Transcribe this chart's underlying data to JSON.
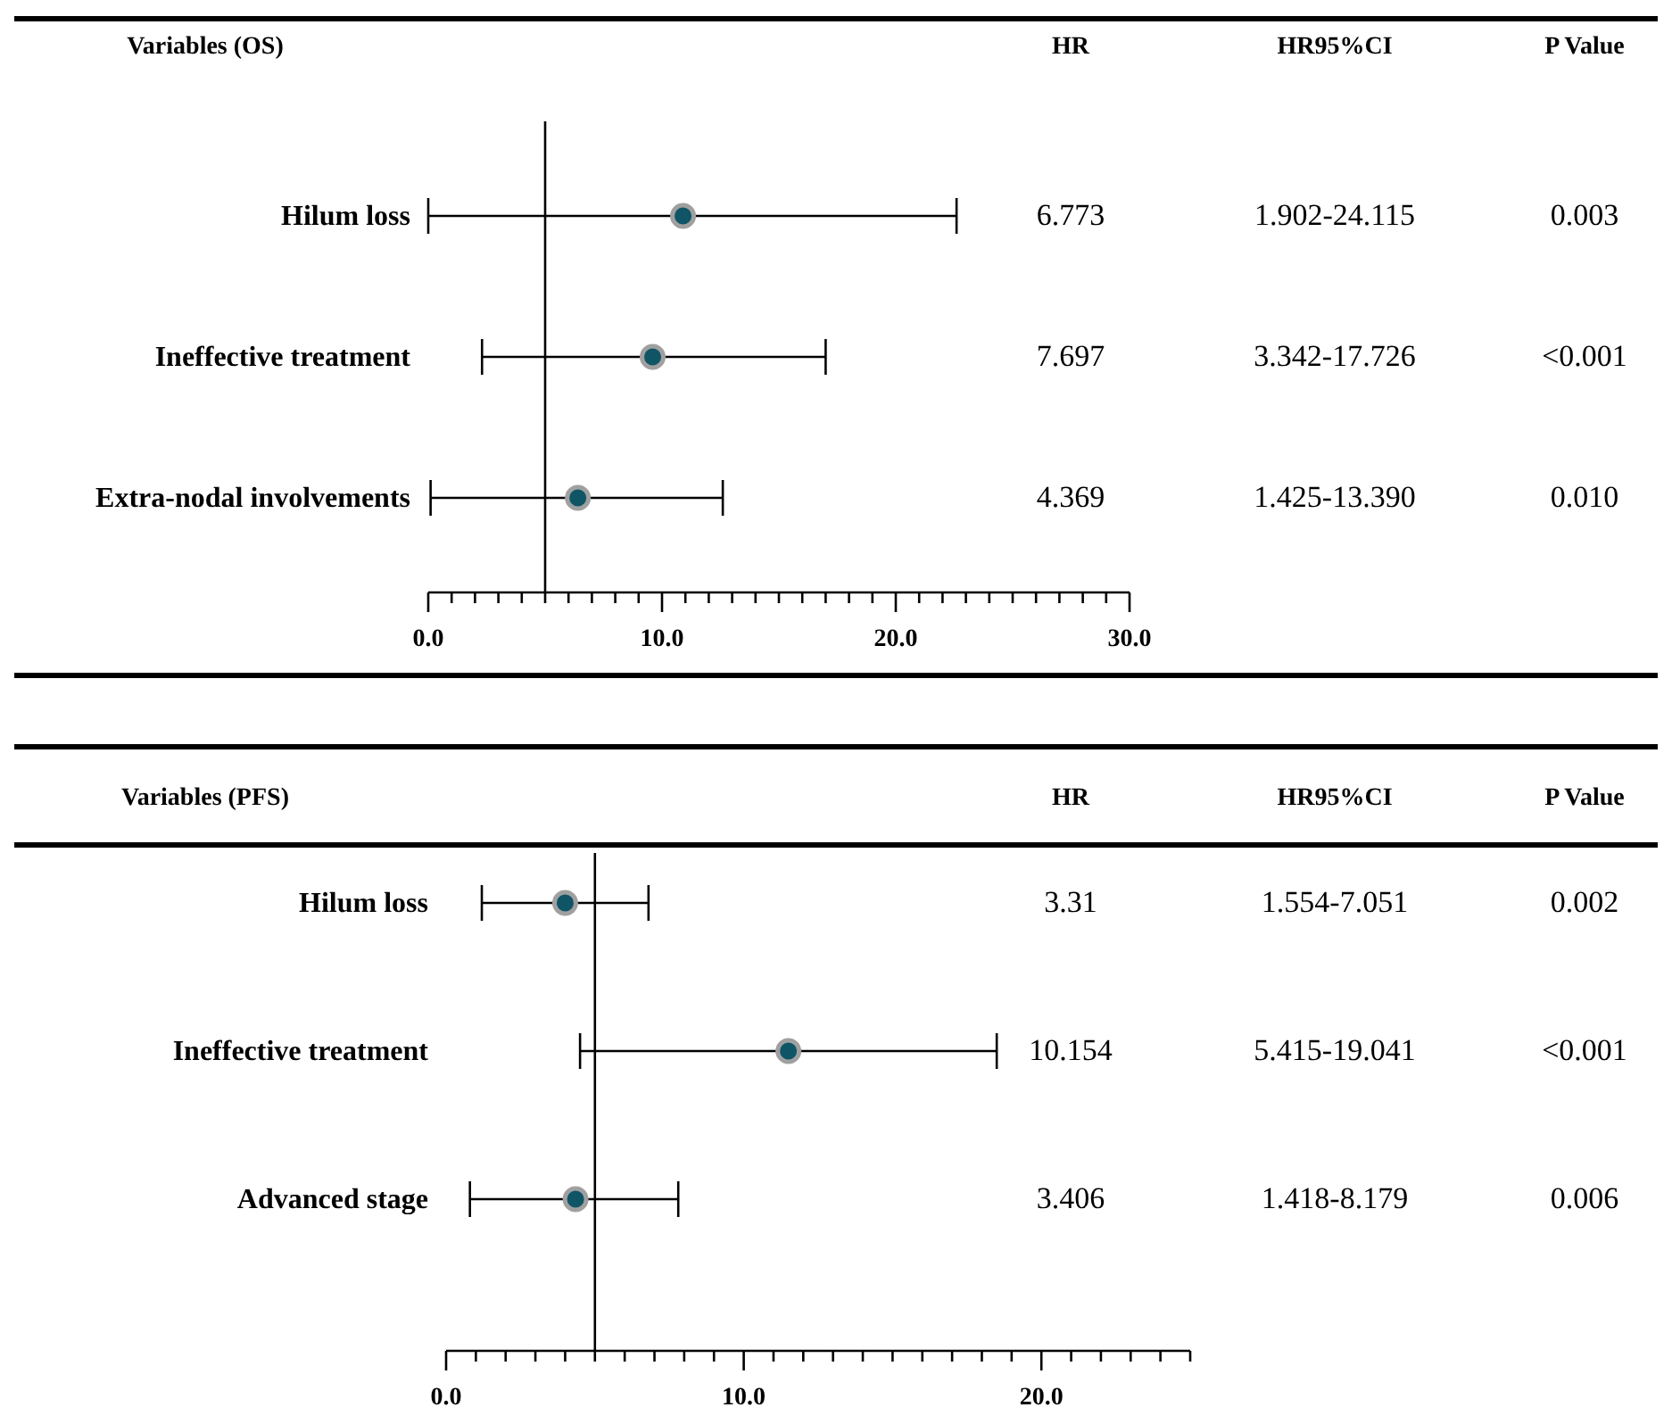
{
  "chart_data": [
    {
      "type": "scatter",
      "orientation": "horizontal",
      "ylabel": "Variables (OS)",
      "categories": [
        "Hilum loss",
        "Ineffective treatment",
        "Extra-nodal involvements"
      ],
      "values": [
        10.9,
        9.6,
        6.4
      ],
      "errors": [
        [
          0.0,
          22.6
        ],
        [
          2.3,
          17.0
        ],
        [
          0.1,
          12.6
        ]
      ],
      "color": "#0f5566",
      "marker": "circle",
      "xlim": [
        0,
        30
      ],
      "xticks": [
        {
          "value": 0,
          "label": "0.0"
        },
        {
          "value": 1,
          "label": null
        },
        {
          "value": 2,
          "label": null
        },
        {
          "value": 3,
          "label": null
        },
        {
          "value": 4,
          "label": null
        },
        {
          "value": 5,
          "label": null
        },
        {
          "value": 6,
          "label": null
        },
        {
          "value": 7,
          "label": null
        },
        {
          "value": 8,
          "label": null
        },
        {
          "value": 9,
          "label": null
        },
        {
          "value": 10,
          "label": "10.0"
        },
        {
          "value": 11,
          "label": null
        },
        {
          "value": 12,
          "label": null
        },
        {
          "value": 13,
          "label": null
        },
        {
          "value": 14,
          "label": null
        },
        {
          "value": 15,
          "label": null
        },
        {
          "value": 16,
          "label": null
        },
        {
          "value": 17,
          "label": null
        },
        {
          "value": 18,
          "label": null
        },
        {
          "value": 19,
          "label": null
        },
        {
          "value": 20,
          "label": "20.0"
        },
        {
          "value": 21,
          "label": null
        },
        {
          "value": 22,
          "label": null
        },
        {
          "value": 23,
          "label": null
        },
        {
          "value": 24,
          "label": null
        },
        {
          "value": 25,
          "label": null
        },
        {
          "value": 26,
          "label": null
        },
        {
          "value": 27,
          "label": null
        },
        {
          "value": 28,
          "label": null
        },
        {
          "value": 29,
          "label": null
        },
        {
          "value": 30,
          "label": "30.0"
        }
      ],
      "ref_lines": [
        {
          "axis": "x",
          "value": 5,
          "color": "#000000"
        }
      ],
      "annotations": [
        "HR",
        "HR95%CI",
        "P Value",
        "6.773",
        "1.902-24.115",
        "0.003",
        "7.697",
        "3.342-17.726",
        "<0.001",
        "4.369",
        "1.425-13.390",
        "0.010"
      ]
    },
    {
      "type": "scatter",
      "orientation": "horizontal",
      "ylabel": "Variables (PFS)",
      "categories": [
        "Hilum loss",
        "Ineffective treatment",
        "Advanced stage"
      ],
      "values": [
        4.0,
        11.5,
        4.35
      ],
      "errors": [
        [
          1.2,
          6.8
        ],
        [
          4.5,
          18.5
        ],
        [
          0.8,
          7.8
        ]
      ],
      "color": "#0f5566",
      "marker": "circle",
      "xlim": [
        0,
        25
      ],
      "xticks": [
        {
          "value": 0,
          "label": "0.0"
        },
        {
          "value": 1,
          "label": null
        },
        {
          "value": 2,
          "label": null
        },
        {
          "value": 3,
          "label": null
        },
        {
          "value": 4,
          "label": null
        },
        {
          "value": 5,
          "label": null
        },
        {
          "value": 6,
          "label": null
        },
        {
          "value": 7,
          "label": null
        },
        {
          "value": 8,
          "label": null
        },
        {
          "value": 9,
          "label": null
        },
        {
          "value": 10,
          "label": "10.0"
        },
        {
          "value": 11,
          "label": null
        },
        {
          "value": 12,
          "label": null
        },
        {
          "value": 13,
          "label": null
        },
        {
          "value": 14,
          "label": null
        },
        {
          "value": 15,
          "label": null
        },
        {
          "value": 16,
          "label": null
        },
        {
          "value": 17,
          "label": null
        },
        {
          "value": 18,
          "label": null
        },
        {
          "value": 19,
          "label": null
        },
        {
          "value": 20,
          "label": "20.0"
        },
        {
          "value": 21,
          "label": null
        },
        {
          "value": 22,
          "label": null
        },
        {
          "value": 23,
          "label": null
        },
        {
          "value": 24,
          "label": null
        },
        {
          "value": 25,
          "label": null
        }
      ],
      "ref_lines": [
        {
          "axis": "x",
          "value": 5,
          "color": "#000000"
        }
      ],
      "annotations": [
        "HR",
        "HR95%CI",
        "P Value",
        "3.31",
        "1.554-7.051",
        "0.002",
        "10.154",
        "5.415-19.041",
        "<0.001",
        "3.406",
        "1.418-8.179",
        "0.006"
      ]
    }
  ]
}
